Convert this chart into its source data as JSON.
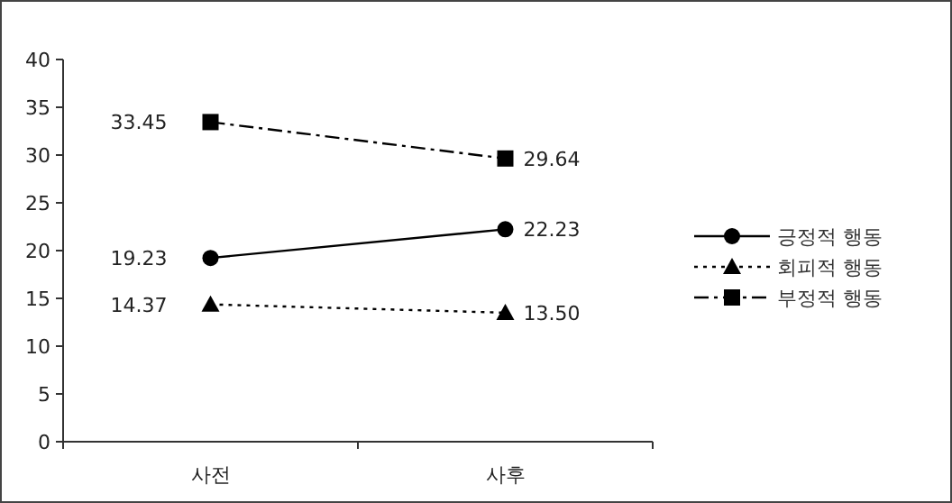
{
  "chart_data": {
    "type": "line",
    "categories": [
      "사전",
      "사후"
    ],
    "ylim": [
      0,
      40
    ],
    "yticks": [
      0,
      5,
      10,
      15,
      20,
      25,
      30,
      35,
      40
    ],
    "grid": false,
    "legend": "right",
    "data_labels": true,
    "series": [
      {
        "name": "긍정적 행동",
        "color": "#000000",
        "values": [
          19.23,
          22.23
        ],
        "marker": "circle",
        "line_style": "solid",
        "value_labels": [
          "19.23",
          "22.23"
        ]
      },
      {
        "name": "회피적 행동",
        "color": "#000000",
        "values": [
          14.37,
          13.5
        ],
        "marker": "triangle",
        "line_style": "dotted",
        "value_labels": [
          "14.37",
          "13.50"
        ]
      },
      {
        "name": "부정적 행동",
        "color": "#000000",
        "values": [
          33.45,
          29.64
        ],
        "marker": "square",
        "line_style": "dashed",
        "value_labels": [
          "33.45",
          "29.64"
        ]
      }
    ]
  }
}
